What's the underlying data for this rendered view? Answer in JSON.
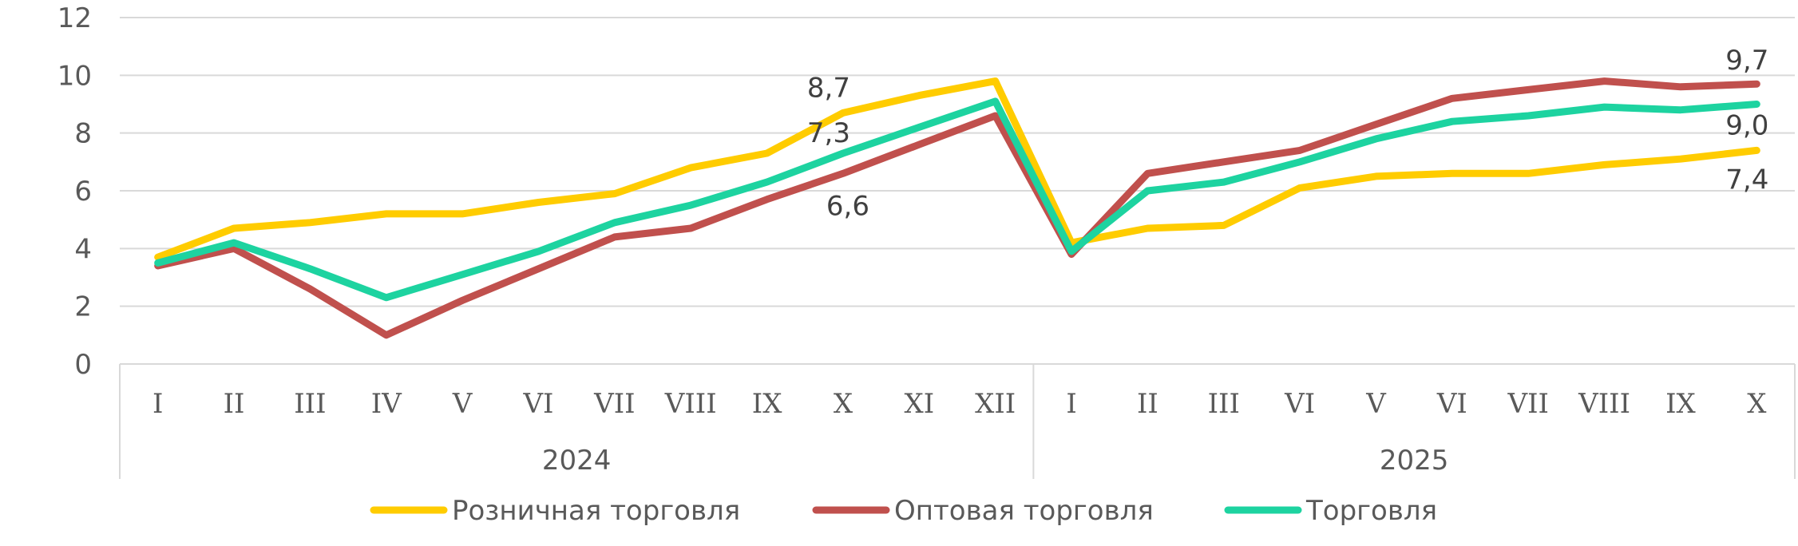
{
  "chart_data": {
    "type": "line",
    "title": "",
    "xlabel": "",
    "ylabel": "",
    "ylim": [
      0,
      12
    ],
    "yticks": [
      0,
      2,
      4,
      6,
      8,
      10,
      12
    ],
    "grid": true,
    "legend_position": "bottom",
    "categories": [
      "I",
      "II",
      "III",
      "IV",
      "V",
      "VI",
      "VII",
      "VIII",
      "IX",
      "X",
      "XI",
      "XII",
      "I",
      "II",
      "III",
      "VI",
      "V",
      "VI",
      "VII",
      "VIII",
      "IX",
      "X"
    ],
    "groups": [
      {
        "label": "2024",
        "count": 12
      },
      {
        "label": "2025",
        "count": 10
      }
    ],
    "series": [
      {
        "name": "Розничная торговля",
        "color": "#FFCC00",
        "values": [
          3.7,
          4.7,
          4.9,
          5.2,
          5.2,
          5.6,
          5.9,
          6.8,
          7.3,
          8.7,
          9.3,
          9.8,
          4.2,
          4.7,
          4.8,
          6.1,
          6.5,
          6.6,
          6.6,
          6.9,
          7.1,
          7.4
        ]
      },
      {
        "name": "Оптовая торговля",
        "color": "#C0504D",
        "values": [
          3.4,
          4.0,
          2.6,
          1.0,
          2.2,
          3.3,
          4.4,
          4.7,
          5.7,
          6.6,
          7.6,
          8.6,
          3.8,
          6.6,
          7.0,
          7.4,
          8.3,
          9.2,
          9.5,
          9.8,
          9.6,
          9.7
        ]
      },
      {
        "name": "Торговля",
        "color": "#1DD3A0",
        "values": [
          3.5,
          4.2,
          3.3,
          2.3,
          3.1,
          3.9,
          4.9,
          5.5,
          6.3,
          7.3,
          8.2,
          9.1,
          3.9,
          6.0,
          6.3,
          7.0,
          7.8,
          8.4,
          8.6,
          8.9,
          8.8,
          9.0
        ]
      }
    ],
    "annotations": [
      {
        "text": "8,7",
        "series": 0,
        "index": 9
      },
      {
        "text": "7,3",
        "series": 2,
        "index": 9
      },
      {
        "text": "6,6",
        "series": 1,
        "index": 9
      },
      {
        "text": "9,7",
        "series": 1,
        "index": 21
      },
      {
        "text": "9,0",
        "series": 2,
        "index": 21
      },
      {
        "text": "7,4",
        "series": 0,
        "index": 21
      }
    ]
  }
}
